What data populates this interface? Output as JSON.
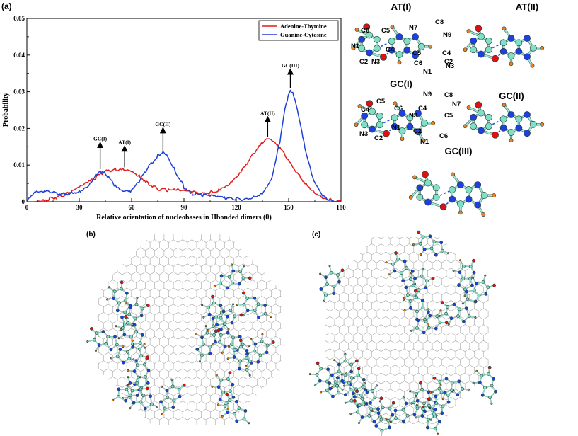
{
  "panel_labels": {
    "a": "(a)",
    "b": "(b)",
    "c": "(c)"
  },
  "colors": {
    "adenine_thymine": "#e41a1c",
    "guanine_cytosine": "#1f3fd6",
    "carbon": "#7fe0c6",
    "nitrogen": "#1f3fe0",
    "oxygen": "#e01010",
    "hydrogen": "#f08020",
    "hbond": "#2255dd",
    "lattice": "#a8a8a8"
  },
  "chart_data": {
    "type": "line",
    "xlabel": "Relative orientation of nucleobases in Hbonded dimers (θ)",
    "ylabel": "Probability",
    "xlim": [
      0,
      180
    ],
    "ylim": [
      0,
      0.05
    ],
    "xticks": [
      "0",
      "30",
      "60",
      "90",
      "120",
      "150",
      "180"
    ],
    "yticks": [
      "0",
      "0.01",
      "0.02",
      "0.03",
      "0.04",
      "0.05"
    ],
    "legend_position": "top-right",
    "series": [
      {
        "name": "Adenine-Thymine",
        "color": "#e41a1c",
        "x": [
          0,
          5,
          10,
          15,
          20,
          25,
          30,
          35,
          40,
          45,
          50,
          55,
          60,
          65,
          70,
          75,
          80,
          85,
          90,
          95,
          100,
          105,
          110,
          115,
          120,
          125,
          130,
          135,
          138,
          140,
          145,
          150,
          155,
          160,
          165,
          170,
          175,
          180
        ],
        "y": [
          0.0,
          0.0002,
          0.0005,
          0.001,
          0.0016,
          0.0025,
          0.0038,
          0.0052,
          0.0068,
          0.0082,
          0.0088,
          0.009,
          0.0085,
          0.0068,
          0.0048,
          0.0035,
          0.0032,
          0.0031,
          0.0029,
          0.0026,
          0.0023,
          0.0025,
          0.0033,
          0.0047,
          0.0068,
          0.0098,
          0.0132,
          0.016,
          0.0172,
          0.0168,
          0.0145,
          0.0112,
          0.0078,
          0.0048,
          0.0026,
          0.0012,
          0.0004,
          0.0
        ]
      },
      {
        "name": "Guanine-Cytosine",
        "color": "#1f3fd6",
        "x": [
          0,
          5,
          10,
          15,
          20,
          25,
          30,
          35,
          40,
          42,
          45,
          50,
          55,
          60,
          65,
          70,
          75,
          78,
          80,
          85,
          90,
          95,
          100,
          105,
          110,
          115,
          120,
          125,
          130,
          135,
          140,
          145,
          148,
          151,
          153,
          155,
          160,
          165,
          170,
          175,
          180
        ],
        "y": [
          0.0,
          0.0025,
          0.0028,
          0.0025,
          0.0022,
          0.0022,
          0.0028,
          0.0045,
          0.0075,
          0.0085,
          0.0078,
          0.0045,
          0.0025,
          0.003,
          0.006,
          0.0098,
          0.0125,
          0.0135,
          0.013,
          0.0085,
          0.004,
          0.0022,
          0.0018,
          0.0015,
          0.0012,
          0.0008,
          0.0007,
          0.0008,
          0.0012,
          0.0025,
          0.006,
          0.0165,
          0.026,
          0.0305,
          0.029,
          0.025,
          0.013,
          0.005,
          0.0015,
          0.0003,
          0.0
        ]
      }
    ],
    "annotations": [
      {
        "text": "GC(I)",
        "x": 42,
        "y": 0.0085,
        "text_y": 0.0165
      },
      {
        "text": "AT(I)",
        "x": 56,
        "y": 0.009,
        "text_y": 0.0155
      },
      {
        "text": "GC(II)",
        "x": 78,
        "y": 0.0135,
        "text_y": 0.0205
      },
      {
        "text": "AT(II)",
        "x": 138,
        "y": 0.0172,
        "text_y": 0.0235
      },
      {
        "text": "GC(III)",
        "x": 151,
        "y": 0.0305,
        "text_y": 0.0365
      }
    ]
  },
  "structures": {
    "at1": {
      "title": "AT(I)",
      "labels": [
        "C6",
        "C5",
        "N1",
        "C4",
        "C2",
        "N3",
        "N7",
        "C8",
        "N9",
        "C5",
        "C4",
        "N3",
        "C6",
        "C2",
        "N1"
      ]
    },
    "at2": {
      "title": "AT(II)"
    },
    "gc1": {
      "title": "GC(I)",
      "labels": [
        "N9",
        "C8",
        "C5",
        "C6",
        "C4",
        "N7",
        "C4",
        "N3",
        "C5",
        "N1",
        "N3",
        "C2",
        "C2",
        "C6",
        "N1"
      ]
    },
    "gc2": {
      "title": "GC(II)"
    },
    "gc3": {
      "title": "GC(III)"
    }
  }
}
